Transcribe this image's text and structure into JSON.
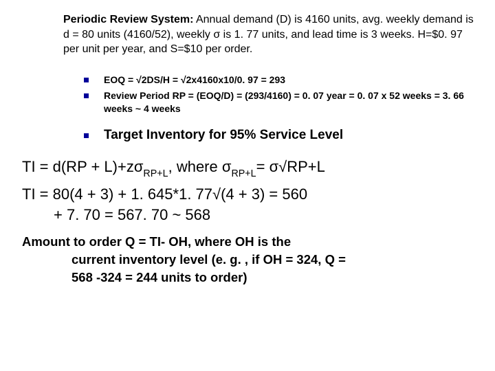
{
  "intro": {
    "title": "Periodic Review System:",
    "text": " Annual demand (D) is 4160 units, avg. weekly demand is d = 80 units (4160/52), weekly σ is 1. 77 units, and lead time is 3 weeks. H=$0. 97 per unit per year, and S=$10 per order."
  },
  "bullets": {
    "eoq": "EOQ = √2DS/H = √2x4160x10/0. 97 = 293",
    "review_period": "Review Period RP = (EOQ/D) = (293/4160) = 0. 07 year = 0. 07 x 52 weeks = 3. 66 weeks ~ 4 weeks",
    "target_inv": "Target Inventory for 95% Service Level"
  },
  "formulas": {
    "ti_def_prefix": "TI = d(RP + L)+zσ",
    "ti_def_sub1": "RP+L",
    "ti_def_mid": ", where σ",
    "ti_def_sub2": "RP+L",
    "ti_def_suffix": "= σ√RP+L",
    "ti_calc_line1": "TI = 80(4 + 3) + 1. 645*1. 77√(4 + 3) = 560",
    "ti_calc_line2": "+ 7. 70 = 567. 70 ~ 568"
  },
  "amount": {
    "line1": "Amount to order Q = TI- OH, where OH is the",
    "line2": "current inventory level (e. g. , if OH = 324, Q =",
    "line3": "568 -324 = 244 units to order)"
  }
}
